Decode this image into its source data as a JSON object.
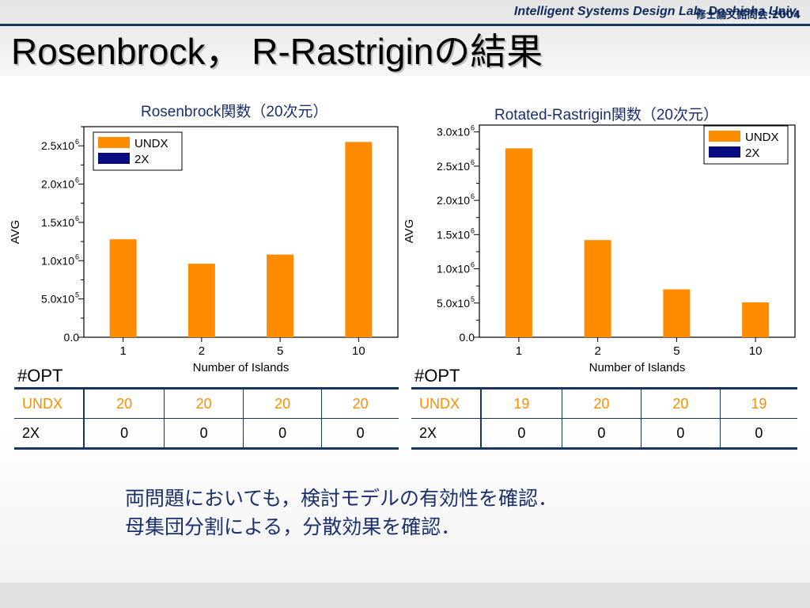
{
  "header": {
    "conference": "修士論文諮問会:2004",
    "title": "Rosenbrock，  R-Rastriginの結果"
  },
  "footer": {
    "lab": "Intelligent Systems Design Lab. Doshisha Univ."
  },
  "colors": {
    "undx": "#ff8c00",
    "x2": "#0a0a80",
    "header_rule": "#17365d",
    "text_blue": "#1b2f6e"
  },
  "chart_data": [
    {
      "type": "bar",
      "title": "Rosenbrock関数（20次元）",
      "categories": [
        "1",
        "2",
        "5",
        "10"
      ],
      "xlabel": "Number of Islands",
      "ylabel": "AVG",
      "ylim": [
        0,
        2750000
      ],
      "yticks": [
        {
          "value": 0,
          "mant": "0.0",
          "exp": ""
        },
        {
          "value": 500000,
          "mant": "5.0x10",
          "exp": "5"
        },
        {
          "value": 1000000,
          "mant": "1.0x10",
          "exp": "6"
        },
        {
          "value": 1500000,
          "mant": "1.5x10",
          "exp": "6"
        },
        {
          "value": 2000000,
          "mant": "2.0x10",
          "exp": "6"
        },
        {
          "value": 2500000,
          "mant": "2.5x10",
          "exp": "6"
        }
      ],
      "series": [
        {
          "name": "UNDX",
          "color": "#ff8c00",
          "values": [
            1280000,
            960000,
            1080000,
            2550000
          ]
        },
        {
          "name": "2X",
          "color": "#0a0a80",
          "values": [
            0,
            0,
            0,
            0
          ]
        }
      ],
      "legend": "top-left",
      "grid": false
    },
    {
      "type": "bar",
      "title": "Rotated-Rastrigin関数（20次元）",
      "categories": [
        "1",
        "2",
        "5",
        "10"
      ],
      "xlabel": "Number of Islands",
      "ylabel": "AVG",
      "ylim": [
        0,
        3100000
      ],
      "yticks": [
        {
          "value": 0,
          "mant": "0.0",
          "exp": ""
        },
        {
          "value": 500000,
          "mant": "5.0x10",
          "exp": "5"
        },
        {
          "value": 1000000,
          "mant": "1.0x10",
          "exp": "6"
        },
        {
          "value": 1500000,
          "mant": "1.5x10",
          "exp": "6"
        },
        {
          "value": 2000000,
          "mant": "2.0x10",
          "exp": "6"
        },
        {
          "value": 2500000,
          "mant": "2.5x10",
          "exp": "6"
        },
        {
          "value": 3000000,
          "mant": "3.0x10",
          "exp": "6"
        }
      ],
      "series": [
        {
          "name": "UNDX",
          "color": "#ff8c00",
          "values": [
            2760000,
            1420000,
            700000,
            510000
          ]
        },
        {
          "name": "2X",
          "color": "#0a0a80",
          "values": [
            0,
            0,
            0,
            0
          ]
        }
      ],
      "legend": "top-right",
      "grid": false
    }
  ],
  "tables": [
    {
      "label": "#OPT",
      "rows": [
        {
          "name": "UNDX",
          "values": [
            "20",
            "20",
            "20",
            "20"
          ]
        },
        {
          "name": "2X",
          "values": [
            "0",
            "0",
            "0",
            "0"
          ]
        }
      ]
    },
    {
      "label": "#OPT",
      "rows": [
        {
          "name": "UNDX",
          "values": [
            "19",
            "20",
            "20",
            "19"
          ]
        },
        {
          "name": "2X",
          "values": [
            "0",
            "0",
            "0",
            "0"
          ]
        }
      ]
    }
  ],
  "conclusion": {
    "line1": "両問題においても，検討モデルの有効性を確認．",
    "line2": "母集団分割による，分散効果を確認．"
  }
}
